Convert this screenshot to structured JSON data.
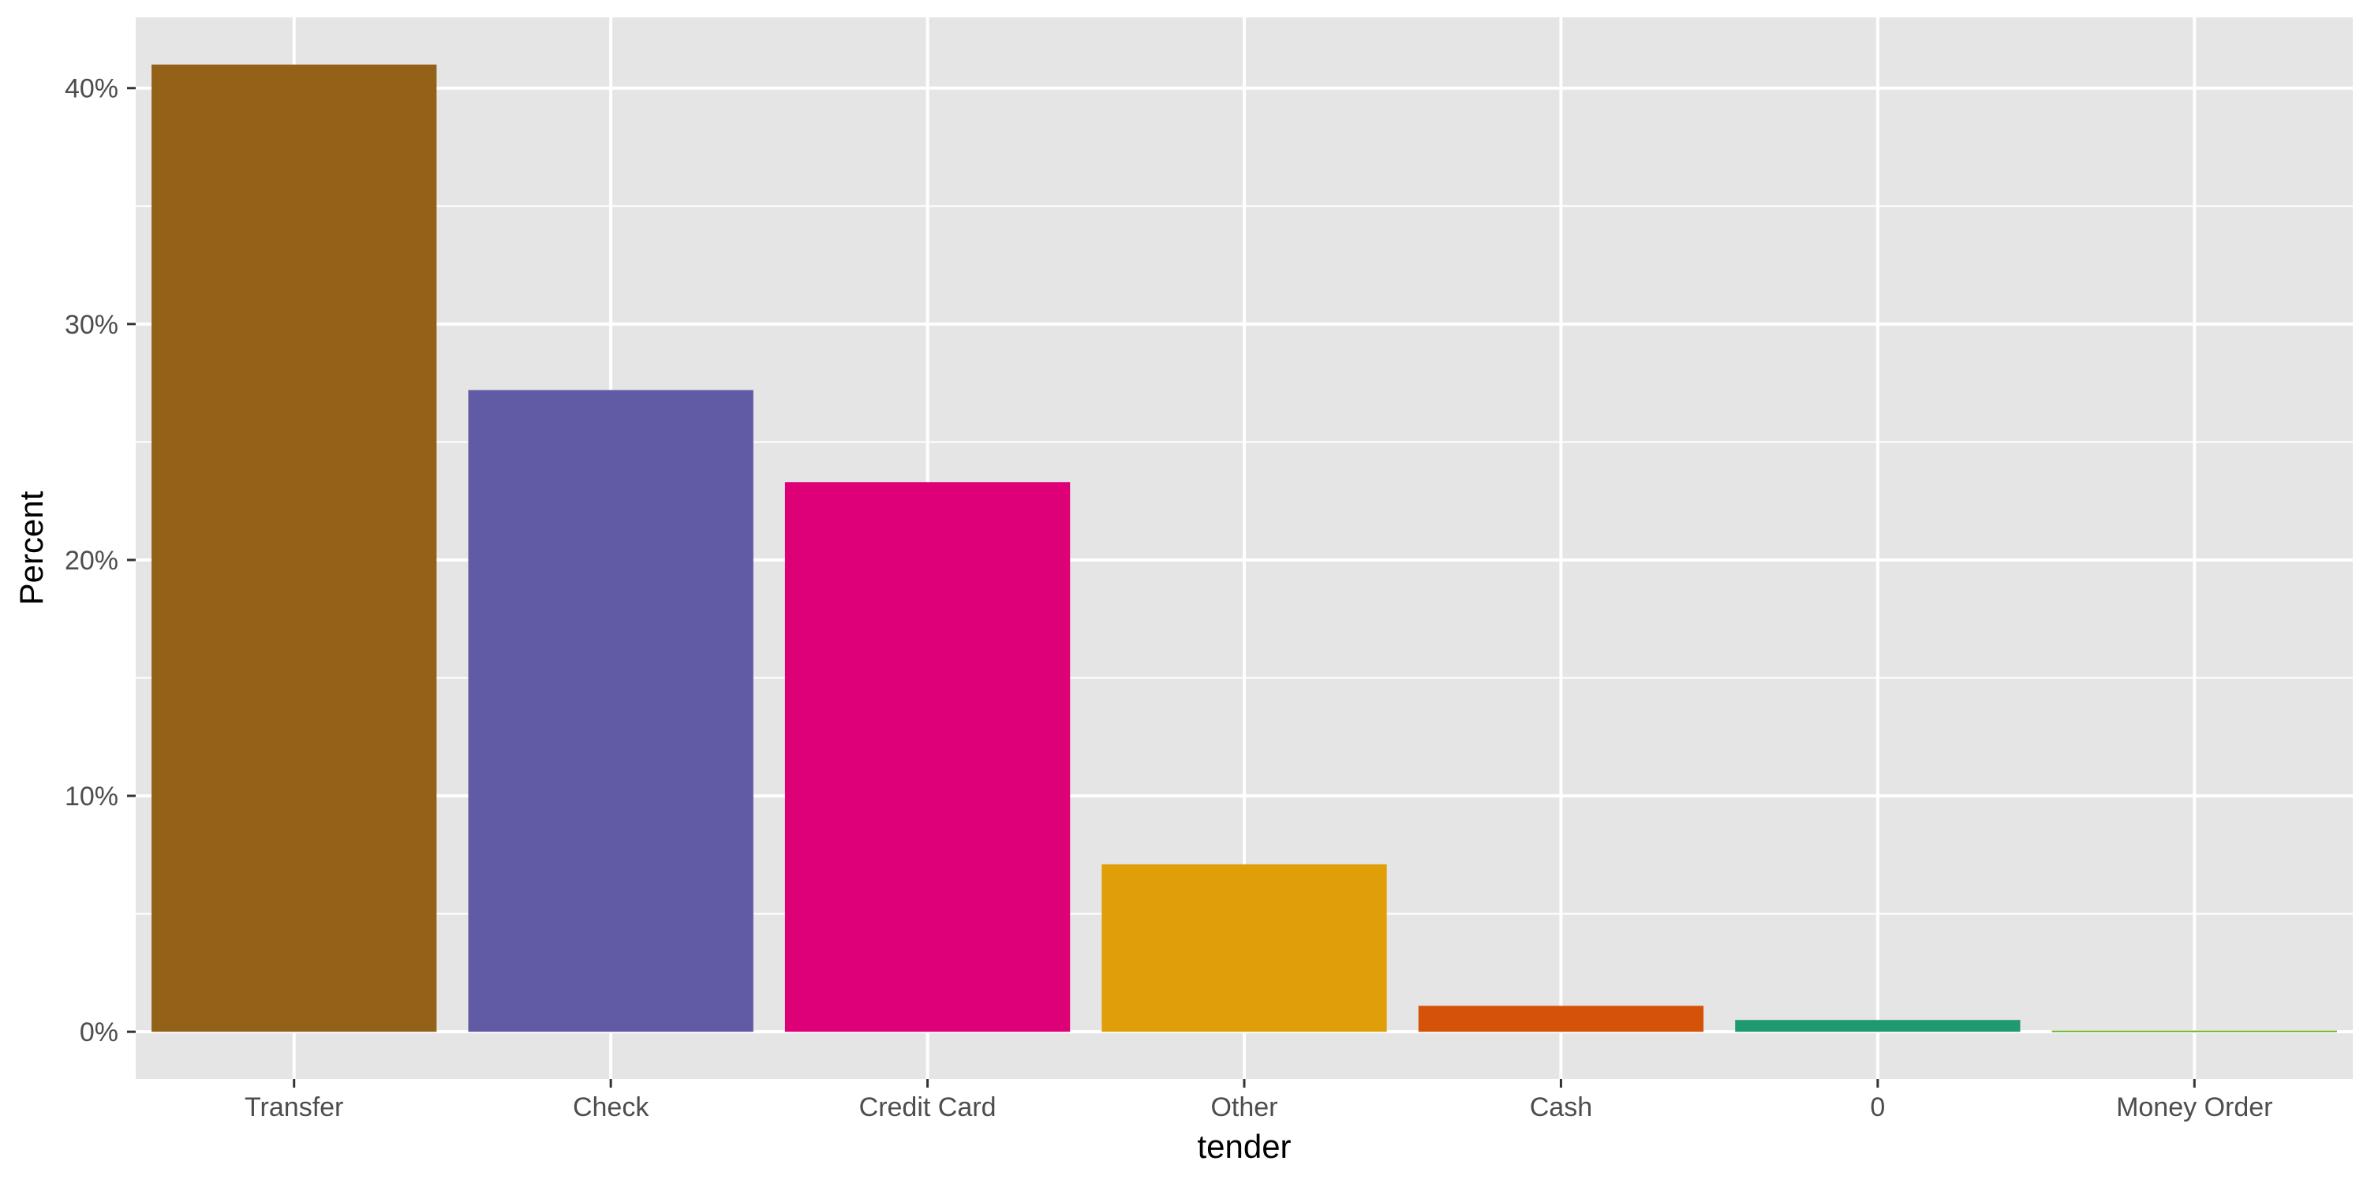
{
  "chart_data": {
    "type": "bar",
    "title": "",
    "xlabel": "tender",
    "ylabel": "Percent",
    "categories": [
      "Transfer",
      "Check",
      "Credit Card",
      "Other",
      "Cash",
      "0",
      "Money Order"
    ],
    "values": [
      41.0,
      27.2,
      23.3,
      7.1,
      1.1,
      0.5,
      0.05
    ],
    "colors": [
      "#936218",
      "#615AA4",
      "#DE0077",
      "#E09F09",
      "#D55209",
      "#1E9A6E",
      "#6AAE2A"
    ],
    "ylim": [
      -2.0,
      43.0
    ],
    "y_ticks": [
      0,
      10,
      20,
      30,
      40
    ],
    "y_tick_labels": [
      "0%",
      "10%",
      "20%",
      "30%",
      "40%"
    ],
    "grid": true,
    "legend": "none",
    "panel_background": "#E5E5E5",
    "grid_color": "#FFFFFF"
  }
}
